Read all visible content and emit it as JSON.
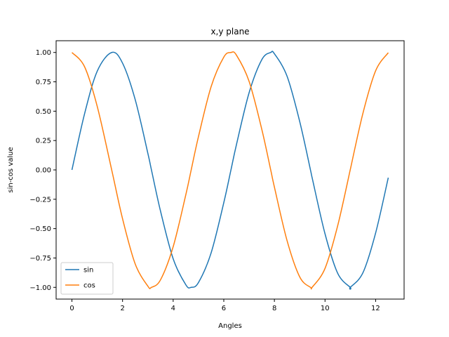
{
  "chart_data": {
    "type": "line",
    "title": "x,y plane",
    "xlabel": "Angles",
    "ylabel": "sin-cos value",
    "xlim": [
      -0.625,
      13.125
    ],
    "ylim": [
      -1.1,
      1.1
    ],
    "xticks": [
      0,
      2,
      4,
      6,
      8,
      10,
      12
    ],
    "xtick_labels": [
      "0",
      "2",
      "4",
      "6",
      "8",
      "10",
      "12"
    ],
    "yticks": [
      1.0,
      0.75,
      0.5,
      0.25,
      0.0,
      -0.25,
      -0.5,
      -0.75,
      -1.0
    ],
    "ytick_labels": [
      "1.00",
      "0.75",
      "0.50",
      "0.25",
      "0.00",
      "−0.25",
      "−0.50",
      "−0.75",
      "−1.00"
    ],
    "grid": false,
    "legend_position": "lower-left",
    "series": [
      {
        "name": "sin",
        "color": "#1f77b4",
        "x": [
          0,
          0.5,
          1.0,
          1.5708,
          2.0,
          2.5,
          3.0,
          3.1416,
          3.5,
          4.0,
          4.5,
          4.7124,
          5.0,
          5.5,
          6.0,
          6.2832,
          6.5,
          7.0,
          7.5,
          7.854,
          8.0,
          8.5,
          9.0,
          9.4248,
          9.5,
          10.0,
          10.5,
          10.9956,
          11.0,
          11.5,
          12.0,
          12.5
        ],
        "y": [
          0.0,
          0.479,
          0.841,
          1.0,
          0.909,
          0.598,
          0.141,
          0.0,
          -0.351,
          -0.757,
          -0.978,
          -1.0,
          -0.959,
          -0.706,
          -0.279,
          0.0,
          0.215,
          0.657,
          0.938,
          1.0,
          0.989,
          0.798,
          0.412,
          0.0,
          -0.075,
          -0.544,
          -0.88,
          -1.0,
          -1.0,
          -0.875,
          -0.537,
          -0.066
        ]
      },
      {
        "name": "cos",
        "color": "#ff7f0e",
        "x": [
          0,
          0.5,
          1.0,
          1.5708,
          2.0,
          2.5,
          3.0,
          3.1416,
          3.5,
          4.0,
          4.5,
          4.7124,
          5.0,
          5.5,
          6.0,
          6.2832,
          6.5,
          7.0,
          7.5,
          7.854,
          8.0,
          8.5,
          9.0,
          9.4248,
          9.5,
          10.0,
          10.5,
          10.9956,
          11.0,
          11.5,
          12.0,
          12.5
        ],
        "y": [
          1.0,
          0.878,
          0.54,
          0.0,
          -0.416,
          -0.801,
          -0.99,
          -1.0,
          -0.936,
          -0.654,
          -0.211,
          0.0,
          0.284,
          0.709,
          0.96,
          1.0,
          0.977,
          0.754,
          0.347,
          0.0,
          -0.146,
          -0.602,
          -0.911,
          -1.0,
          -0.997,
          -0.839,
          -0.476,
          0.0,
          0.004,
          0.484,
          0.844,
          0.998
        ]
      }
    ]
  }
}
